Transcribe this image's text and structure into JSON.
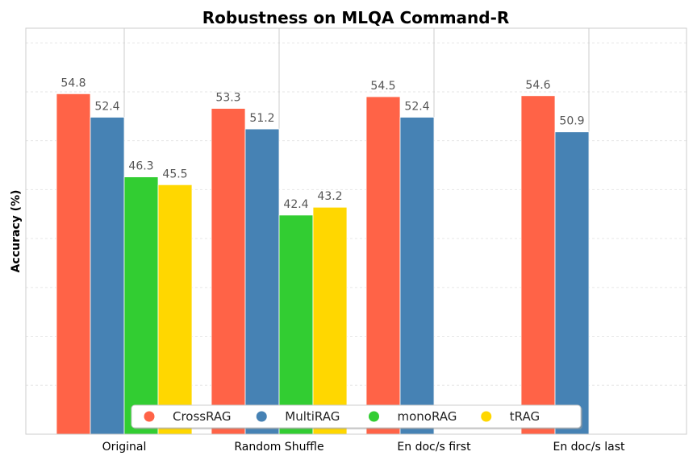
{
  "chart_data": {
    "type": "bar",
    "title": "Robustness on MLQA Command-R",
    "xlabel": "",
    "ylabel": "Accuracy (%)",
    "categories": [
      "Original",
      "Random Shuffle",
      "En doc/s first",
      "En doc/s last"
    ],
    "series": [
      {
        "name": "CrossRAG",
        "color": "#FF6347",
        "values": [
          54.8,
          53.3,
          54.5,
          54.6
        ]
      },
      {
        "name": "MultiRAG",
        "color": "#4682B4",
        "values": [
          52.4,
          51.2,
          52.4,
          50.9
        ]
      },
      {
        "name": "monoRAG",
        "color": "#32CD32",
        "values": [
          46.3,
          42.4,
          null,
          null
        ]
      },
      {
        "name": "tRAG",
        "color": "#FFD700",
        "values": [
          45.5,
          43.2,
          null,
          null
        ]
      }
    ],
    "ylim": [
      20,
      61.5
    ],
    "grid": true,
    "legend_position": "bottom-center"
  }
}
